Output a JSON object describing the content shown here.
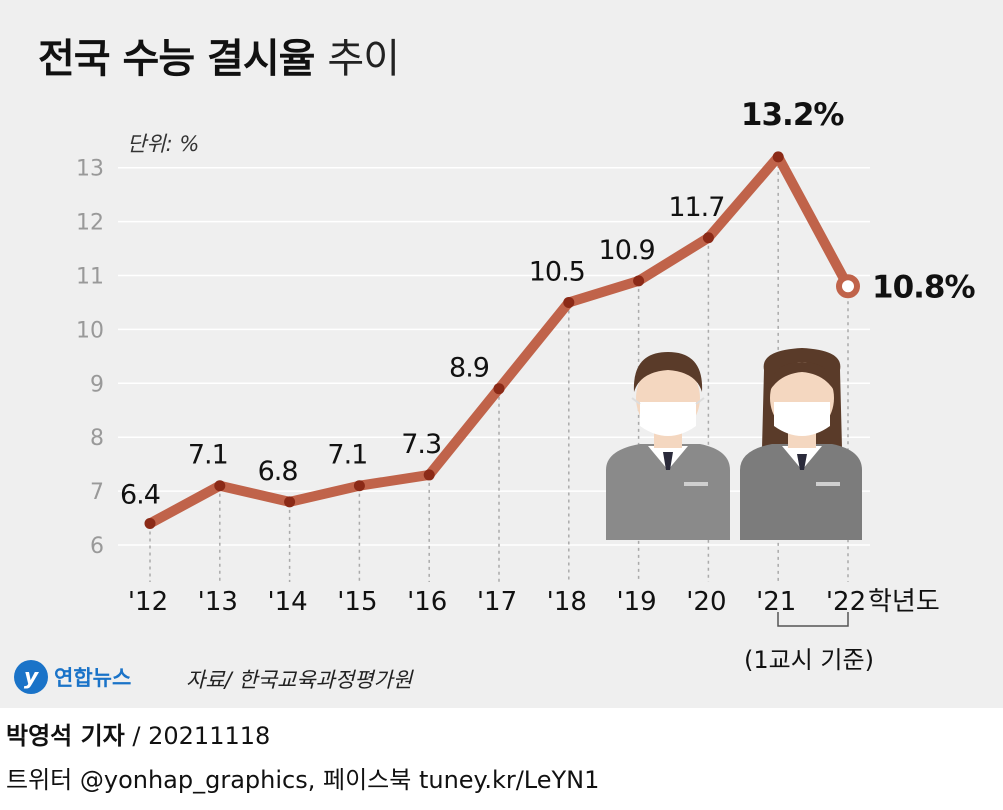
{
  "title": {
    "bold": "전국 수능 결시율",
    "light": "추이"
  },
  "unit_label": "단위: %",
  "x_axis_suffix": "학년도",
  "footnote": "(1교시 기준)",
  "source": "자료/ 한국교육과정평가원",
  "logo_text": "연합뉴스",
  "byline": {
    "reporter": "박영석 기자",
    "date": "20211118"
  },
  "social": "트위터 @yonhap_graphics, 페이스북 tuney.kr/LeYN1",
  "colors": {
    "line": "#c0634a",
    "point": "#8b2a17",
    "background": "#efefef",
    "jacket": "#8a8a8a",
    "skin": "#f4d7c0",
    "hair": "#5a3b29"
  },
  "chart_data": {
    "type": "line",
    "categories": [
      "'12",
      "'13",
      "'14",
      "'15",
      "'16",
      "'17",
      "'18",
      "'19",
      "'20",
      "'21",
      "'22"
    ],
    "values": [
      6.4,
      7.1,
      6.8,
      7.1,
      7.3,
      8.9,
      10.5,
      10.9,
      11.7,
      13.2,
      10.8
    ],
    "labels": [
      "6.4",
      "7.1",
      "6.8",
      "7.1",
      "7.3",
      "8.9",
      "10.5",
      "10.9",
      "11.7",
      "13.2%",
      "10.8%"
    ],
    "yticks": [
      6,
      7,
      8,
      9,
      10,
      11,
      12,
      13
    ],
    "ylim": [
      6,
      13
    ],
    "grid": true
  }
}
